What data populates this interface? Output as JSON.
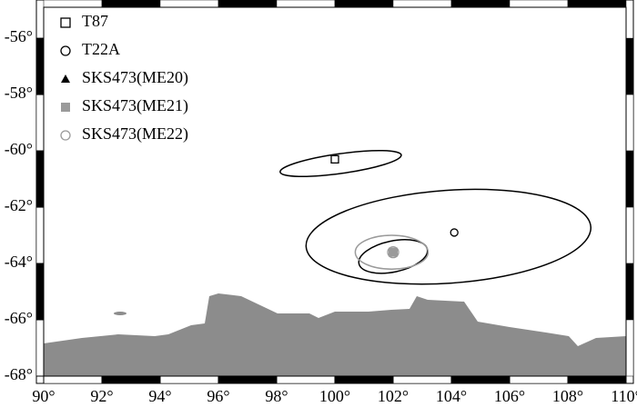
{
  "chart_data": {
    "type": "scatter",
    "xlim": [
      90,
      110
    ],
    "ylim": [
      -68,
      -54.9
    ],
    "xticks": [
      {
        "value": 90,
        "label": "90°"
      },
      {
        "value": 92,
        "label": "92°"
      },
      {
        "value": 94,
        "label": "94°"
      },
      {
        "value": 96,
        "label": "96°"
      },
      {
        "value": 98,
        "label": "98°"
      },
      {
        "value": 100,
        "label": "100°"
      },
      {
        "value": 102,
        "label": "102°"
      },
      {
        "value": 104,
        "label": "104°"
      },
      {
        "value": 106,
        "label": "106°"
      },
      {
        "value": 108,
        "label": "108°"
      },
      {
        "value": 110,
        "label": "110°"
      }
    ],
    "yticks": [
      {
        "value": -56,
        "label": "-56°"
      },
      {
        "value": -58,
        "label": "-58°"
      },
      {
        "value": -60,
        "label": "-60°"
      },
      {
        "value": -62,
        "label": "-62°"
      },
      {
        "value": -64,
        "label": "-64°"
      },
      {
        "value": -66,
        "label": "-66°"
      },
      {
        "value": -68,
        "label": "-68°"
      }
    ],
    "legend": "top-left",
    "series": [
      {
        "name": "T87",
        "marker": "square",
        "color": "#000000",
        "x": [
          100
        ],
        "y": [
          -60.3
        ],
        "ellipse": [
          100.2,
          -60.45,
          2.1,
          0.35,
          8
        ]
      },
      {
        "name": "T22A",
        "marker": "circle",
        "color": "#000000",
        "x": [
          104.1
        ],
        "y": [
          -62.9
        ],
        "ellipse": [
          103.9,
          -63.05,
          4.9,
          1.65,
          4
        ]
      },
      {
        "name": "SKS473(ME20)",
        "marker": "triangle",
        "color": "#000000",
        "x": [
          102
        ],
        "y": [
          -63.6
        ],
        "ellipse": [
          102,
          -63.75,
          1.2,
          0.55,
          12
        ]
      },
      {
        "name": "SKS473(ME21)",
        "marker": "filled-square",
        "color": "#9a9a9a",
        "x": [
          102
        ],
        "y": [
          -63.6
        ]
      },
      {
        "name": "SKS473(ME22)",
        "marker": "circle",
        "color": "#9a9a9a",
        "x": [
          102
        ],
        "y": [
          -63.6
        ],
        "ellipse": [
          101.95,
          -63.6,
          1.25,
          0.6,
          0
        ]
      }
    ]
  }
}
